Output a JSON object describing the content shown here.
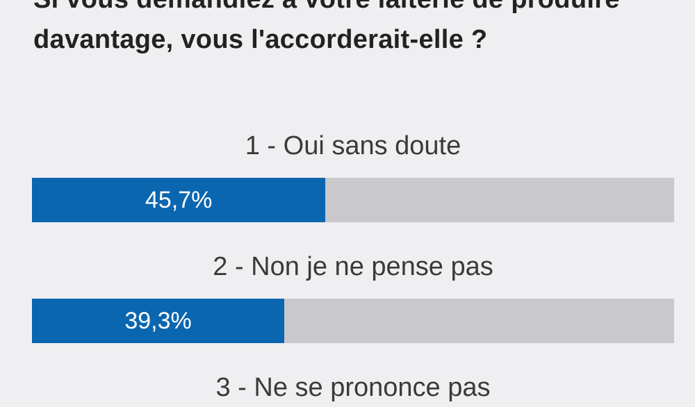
{
  "poll": {
    "question": "Si vous demandiez à votre laiterie de produire davantage, vous l'accorderait-elle ?",
    "options": [
      {
        "label": "1 - Oui sans doute",
        "value_label": "45,7%"
      },
      {
        "label": "2 - Non je ne pense pas",
        "value_label": "39,3%"
      },
      {
        "label": "3 - Ne se prononce pas"
      }
    ]
  },
  "colors": {
    "bar_fill": "#0b66b0",
    "bar_track": "#c9c9cb",
    "background": "#efeff1"
  },
  "chart_data": {
    "type": "bar",
    "orientation": "horizontal",
    "title": "Si vous demandiez à votre laiterie de produire davantage, vous l'accorderait-elle ?",
    "categories": [
      "1 - Oui sans doute",
      "2 - Non je ne pense pas",
      "3 - Ne se prononce pas"
    ],
    "values": [
      45.7,
      39.3,
      null
    ],
    "data_labels": [
      "45,7%",
      "39,3%",
      null
    ],
    "unit": "%",
    "xlim": [
      0,
      100
    ]
  }
}
